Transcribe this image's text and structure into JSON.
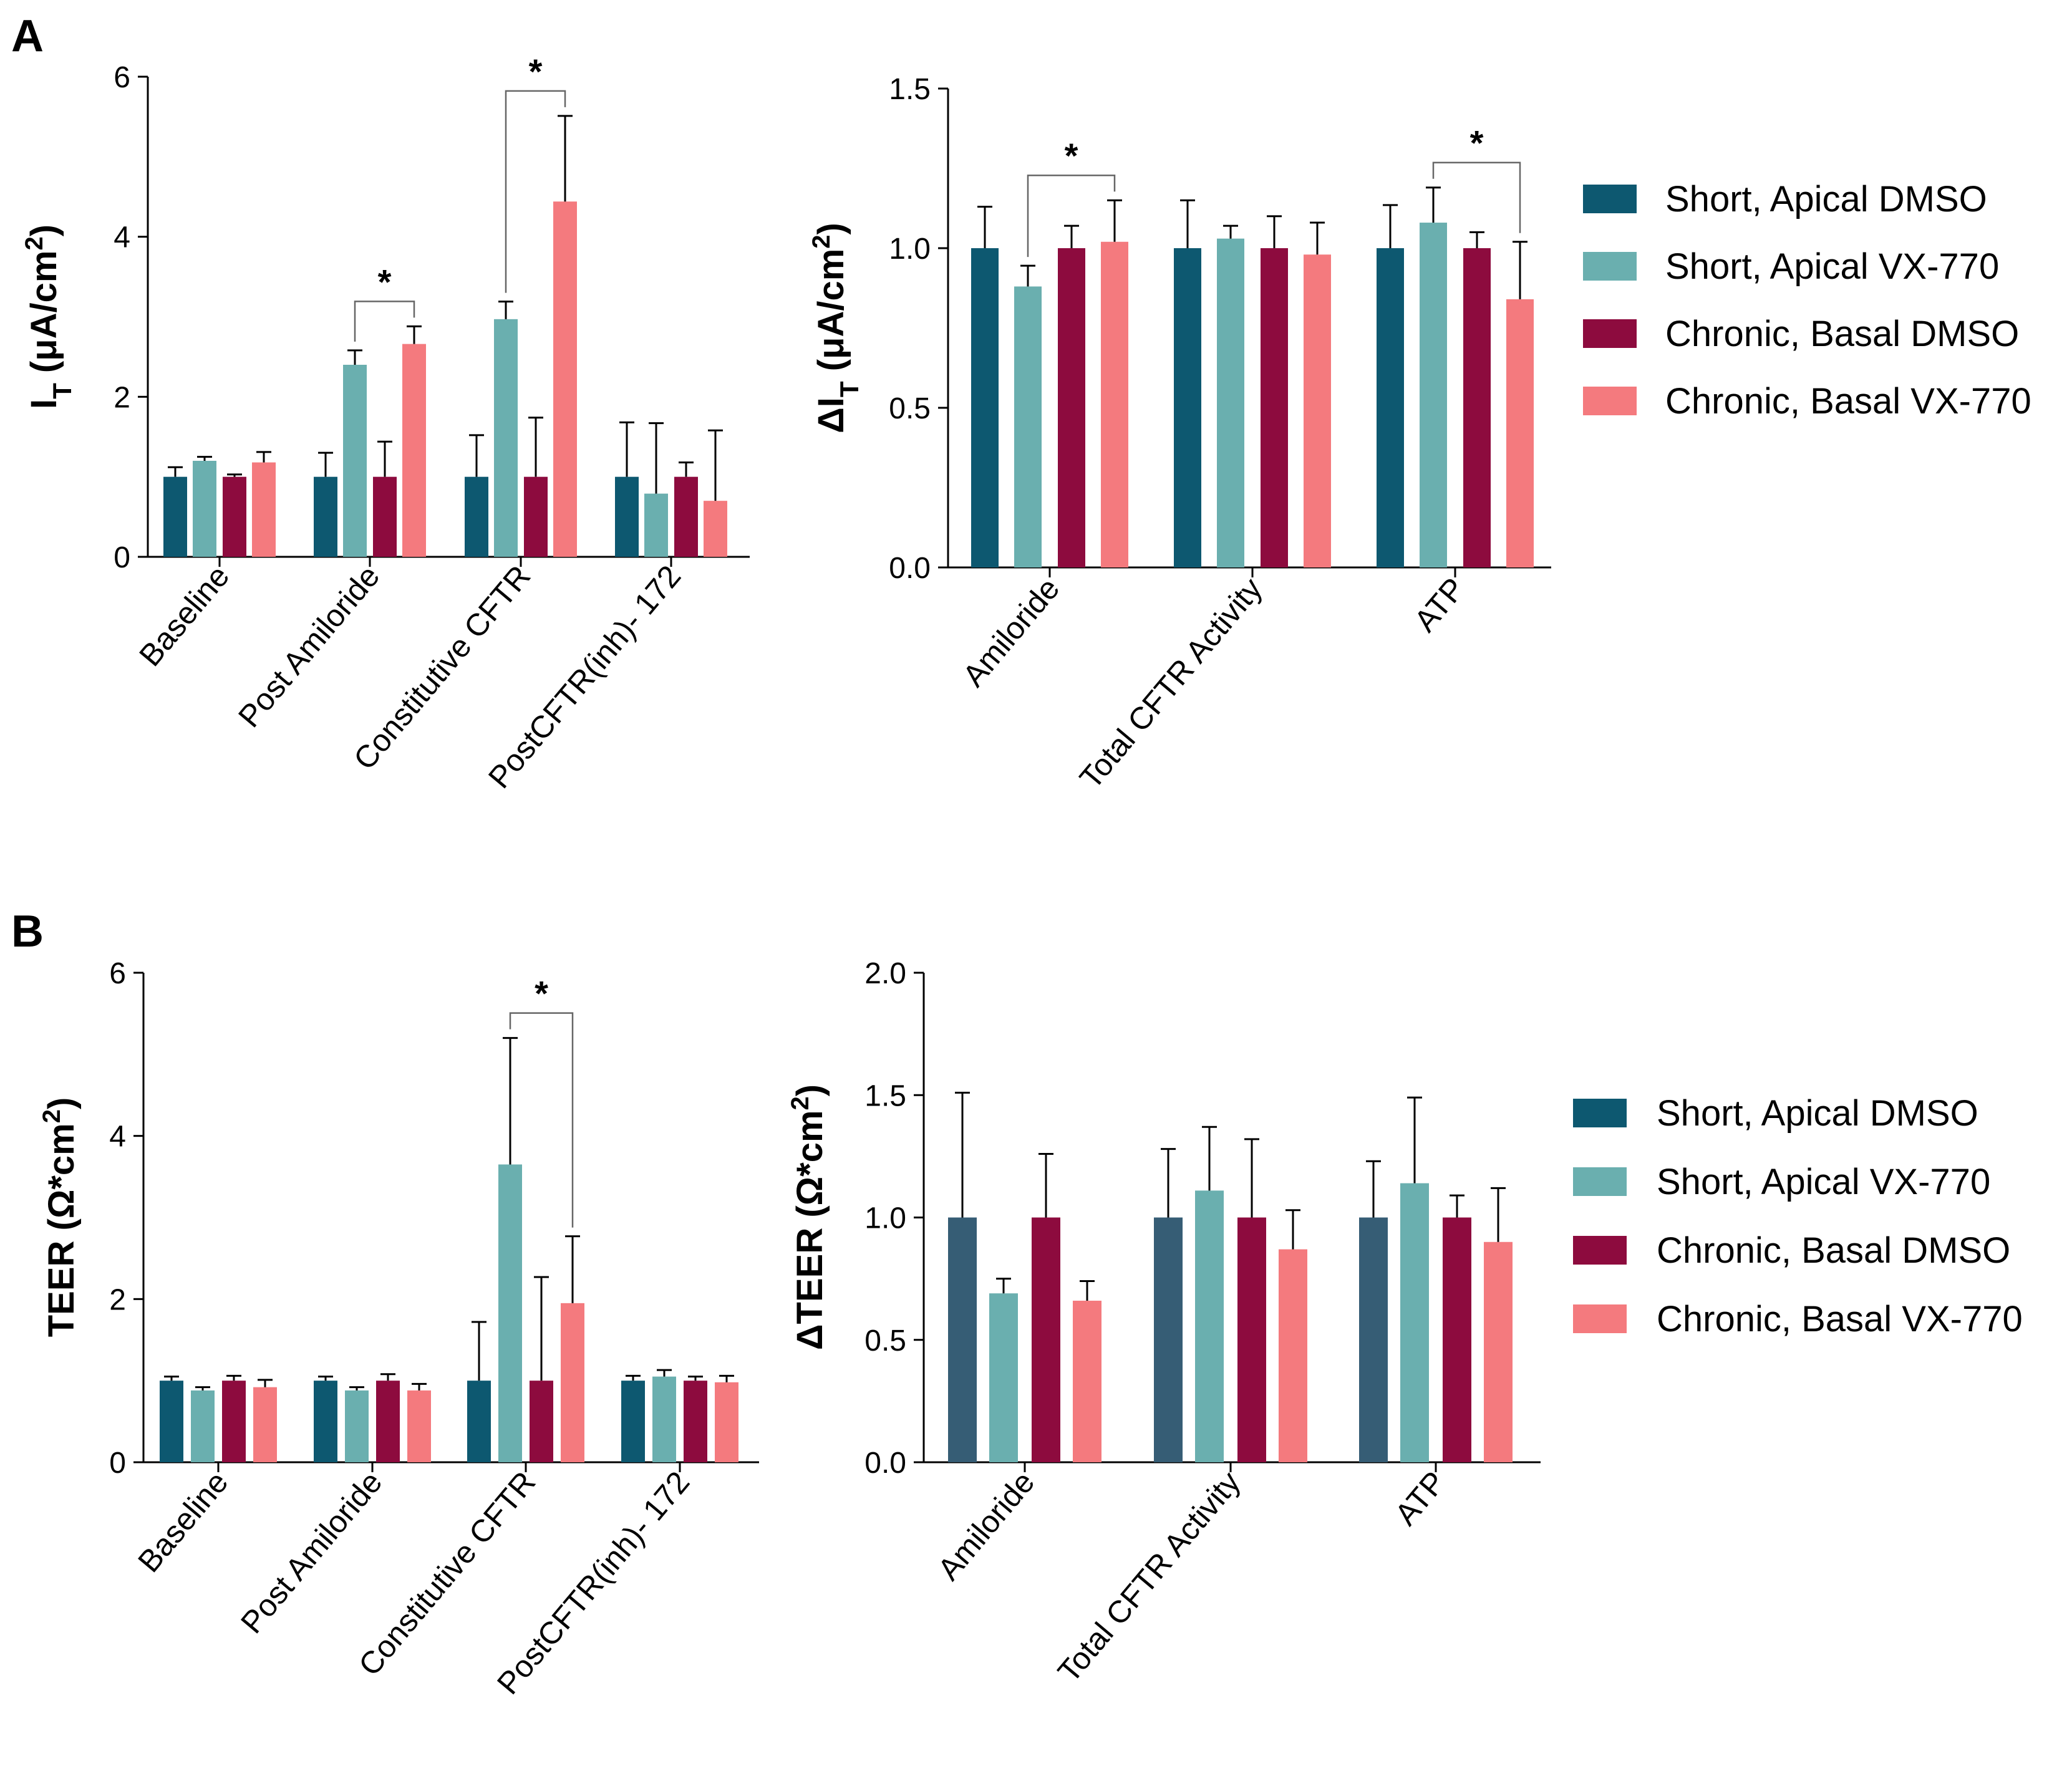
{
  "panels": [
    {
      "letter": "A"
    },
    {
      "letter": "B"
    }
  ],
  "colors": {
    "short_apical_dmso": "#0d5870",
    "short_apical_dmso_b2": "#365d75",
    "short_apical_vx770": "#6aafaf",
    "chronic_basal_dmso": "#8d0b3e",
    "chronic_basal_vx770": "#f47a7e"
  },
  "legend": {
    "items": [
      {
        "label": "Short, Apical DMSO",
        "color_key": "short_apical_dmso"
      },
      {
        "label": "Short, Apical VX-770",
        "color_key": "short_apical_vx770"
      },
      {
        "label": "Chronic, Basal DMSO",
        "color_key": "chronic_basal_dmso"
      },
      {
        "label": "Chronic, Basal VX-770",
        "color_key": "chronic_basal_vx770"
      }
    ]
  },
  "chart_data": [
    {
      "id": "A1",
      "type": "bar",
      "panel": "A",
      "ylabel": "I_T (μA/cm²)",
      "ylabel_main": "I",
      "ylabel_sub": "T",
      "ylabel_rest": " (μA/cm",
      "ylabel_sup": "2",
      "ylabel_end": ")",
      "ylim": [
        0,
        6
      ],
      "yticks": [
        "0",
        "2",
        "4",
        "6"
      ],
      "ytick_values": [
        0,
        2,
        4,
        6
      ],
      "categories": [
        "Baseline",
        "Post Amiloride",
        "Constitutive CFTR",
        "PostCFTR(inh)- 172"
      ],
      "series": [
        {
          "name": "Short, Apical DMSO",
          "color_key": "short_apical_dmso",
          "values": [
            1.0,
            1.0,
            1.0,
            1.0
          ],
          "errors": [
            0.12,
            0.3,
            0.52,
            0.68
          ]
        },
        {
          "name": "Short, Apical VX-770",
          "color_key": "short_apical_vx770",
          "values": [
            1.2,
            2.4,
            2.97,
            0.79
          ],
          "errors": [
            0.05,
            0.18,
            0.22,
            0.88
          ]
        },
        {
          "name": "Chronic, Basal DMSO",
          "color_key": "chronic_basal_dmso",
          "values": [
            1.0,
            1.0,
            1.0,
            1.0
          ],
          "errors": [
            0.03,
            0.44,
            0.74,
            0.18
          ]
        },
        {
          "name": "Chronic, Basal VX-770",
          "color_key": "chronic_basal_vx770",
          "values": [
            1.18,
            2.66,
            4.44,
            0.7
          ],
          "errors": [
            0.13,
            0.22,
            1.07,
            0.88
          ]
        }
      ],
      "significance": [
        {
          "category": 1,
          "from_series": 1,
          "to_series": 3,
          "label": "*"
        },
        {
          "category": 2,
          "from_series": 1,
          "to_series": 3,
          "label": "*"
        }
      ]
    },
    {
      "id": "A2",
      "type": "bar",
      "panel": "A",
      "ylabel": "ΔI_T (μA/cm²)",
      "ylabel_main": "ΔI",
      "ylabel_sub": "T",
      "ylabel_rest": " (μA/cm",
      "ylabel_sup": "2",
      "ylabel_end": ")",
      "ylim": [
        0,
        1.5
      ],
      "yticks": [
        "0.0",
        "0.5",
        "1.0",
        "1.5"
      ],
      "ytick_values": [
        0,
        0.5,
        1.0,
        1.5
      ],
      "categories": [
        "Amiloride",
        "Total CFTR Activity",
        "ATP"
      ],
      "series": [
        {
          "name": "Short, Apical DMSO",
          "color_key": "short_apical_dmso",
          "values": [
            1.0,
            1.0,
            1.0
          ],
          "errors": [
            0.13,
            0.15,
            0.135
          ]
        },
        {
          "name": "Short, Apical VX-770",
          "color_key": "short_apical_vx770",
          "values": [
            0.88,
            1.03,
            1.08
          ],
          "errors": [
            0.065,
            0.04,
            0.11
          ]
        },
        {
          "name": "Chronic, Basal DMSO",
          "color_key": "chronic_basal_dmso",
          "values": [
            1.0,
            1.0,
            1.0
          ],
          "errors": [
            0.07,
            0.1,
            0.05
          ]
        },
        {
          "name": "Chronic, Basal VX-770",
          "color_key": "chronic_basal_vx770",
          "values": [
            1.02,
            0.98,
            0.84
          ],
          "errors": [
            0.13,
            0.1,
            0.18
          ]
        }
      ],
      "significance": [
        {
          "category": 0,
          "from_series": 1,
          "to_series": 3,
          "label": "*"
        },
        {
          "category": 2,
          "from_series": 1,
          "to_series": 3,
          "label": "*"
        }
      ]
    },
    {
      "id": "B1",
      "type": "bar",
      "panel": "B",
      "ylabel": "TEER (Ω*cm²)",
      "ylabel_main": "TEER (Ω*cm",
      "ylabel_sub": "",
      "ylabel_rest": "",
      "ylabel_sup": "2",
      "ylabel_end": ")",
      "ylim": [
        0,
        6
      ],
      "yticks": [
        "0",
        "2",
        "4",
        "6"
      ],
      "ytick_values": [
        0,
        2,
        4,
        6
      ],
      "categories": [
        "Baseline",
        "Post Amiloride",
        "Constitutive CFTR",
        "PostCFTR(inh)- 172"
      ],
      "series": [
        {
          "name": "Short, Apical DMSO",
          "color_key": "short_apical_dmso",
          "values": [
            1.0,
            1.0,
            1.0,
            1.0
          ],
          "errors": [
            0.05,
            0.05,
            0.72,
            0.06
          ]
        },
        {
          "name": "Short, Apical VX-770",
          "color_key": "short_apical_vx770",
          "values": [
            0.88,
            0.88,
            3.65,
            1.05
          ],
          "errors": [
            0.04,
            0.04,
            1.55,
            0.08
          ]
        },
        {
          "name": "Chronic, Basal DMSO",
          "color_key": "chronic_basal_dmso",
          "values": [
            1.0,
            1.0,
            1.0,
            1.0
          ],
          "errors": [
            0.06,
            0.08,
            1.27,
            0.05
          ]
        },
        {
          "name": "Chronic, Basal VX-770",
          "color_key": "chronic_basal_vx770",
          "values": [
            0.92,
            0.88,
            1.95,
            0.98
          ],
          "errors": [
            0.09,
            0.08,
            0.82,
            0.08
          ]
        }
      ],
      "significance": [
        {
          "category": 2,
          "from_series": 1,
          "to_series": 3,
          "label": "*"
        }
      ]
    },
    {
      "id": "B2",
      "type": "bar",
      "panel": "B",
      "ylabel": "ΔTEER (Ω*cm²)",
      "ylabel_main": "ΔTEER (Ω*cm",
      "ylabel_sub": "",
      "ylabel_rest": "",
      "ylabel_sup": "2",
      "ylabel_end": ")",
      "ylim": [
        0,
        2.0
      ],
      "yticks": [
        "0.0",
        "0.5",
        "1.0",
        "1.5",
        "2.0"
      ],
      "ytick_values": [
        0,
        0.5,
        1.0,
        1.5,
        2.0
      ],
      "categories": [
        "Amiloride",
        "Total CFTR Activity",
        "ATP"
      ],
      "series": [
        {
          "name": "Short, Apical DMSO",
          "color_key": "short_apical_dmso_b2",
          "values": [
            1.0,
            1.0,
            1.0
          ],
          "errors": [
            0.51,
            0.28,
            0.23
          ]
        },
        {
          "name": "Short, Apical VX-770",
          "color_key": "short_apical_vx770",
          "values": [
            0.69,
            1.11,
            1.14
          ],
          "errors": [
            0.06,
            0.26,
            0.35
          ]
        },
        {
          "name": "Chronic, Basal DMSO",
          "color_key": "chronic_basal_dmso",
          "values": [
            1.0,
            1.0,
            1.0
          ],
          "errors": [
            0.26,
            0.32,
            0.09
          ]
        },
        {
          "name": "Chronic, Basal VX-770",
          "color_key": "chronic_basal_vx770",
          "values": [
            0.66,
            0.87,
            0.9
          ],
          "errors": [
            0.08,
            0.16,
            0.22
          ]
        }
      ],
      "significance": []
    }
  ]
}
